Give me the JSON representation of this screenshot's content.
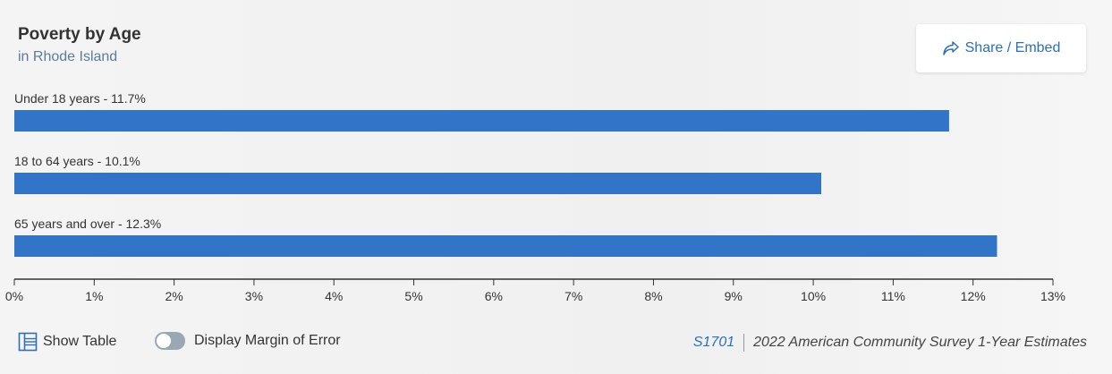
{
  "header": {
    "title": "Poverty by Age",
    "subtitle": "in Rhode Island"
  },
  "share": {
    "label": "Share / Embed",
    "icon": "share-icon"
  },
  "footer": {
    "show_table_label": "Show Table",
    "moe_label": "Display Margin of Error",
    "moe_enabled": false,
    "source_code": "S1701",
    "source_text": "2022 American Community Survey 1-Year Estimates"
  },
  "colors": {
    "bar": "#3174c8",
    "link": "#2f6fb3"
  },
  "chart_data": {
    "type": "bar",
    "orientation": "horizontal",
    "categories": [
      "Under 18 years",
      "18 to 64 years",
      "65 years and over"
    ],
    "values": [
      11.7,
      10.1,
      12.3
    ],
    "bar_labels": [
      "Under 18 years - 11.7%",
      "18 to 64 years - 10.1%",
      "65 years and over - 12.3%"
    ],
    "xlim": [
      0,
      13
    ],
    "xticks": [
      0,
      1,
      2,
      3,
      4,
      5,
      6,
      7,
      8,
      9,
      10,
      11,
      12,
      13
    ],
    "xtick_labels": [
      "0%",
      "1%",
      "2%",
      "3%",
      "4%",
      "5%",
      "6%",
      "7%",
      "8%",
      "9%",
      "10%",
      "11%",
      "12%",
      "13%"
    ],
    "grid": false
  }
}
